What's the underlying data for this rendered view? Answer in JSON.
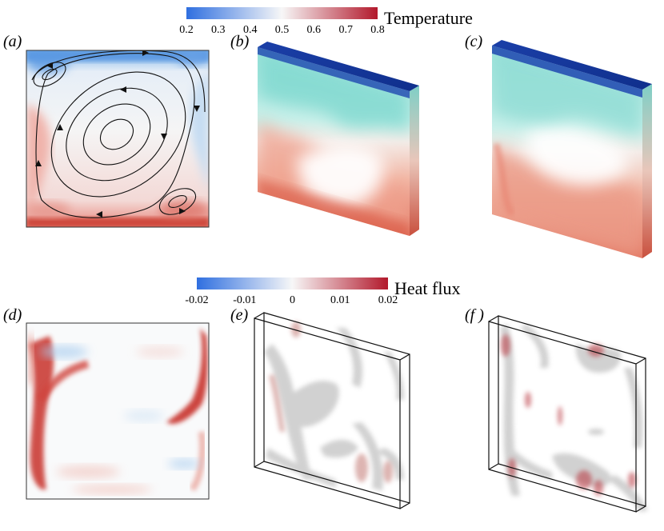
{
  "colorbars": [
    {
      "title": "Temperature",
      "ticks": [
        "0.2",
        "0.3",
        "0.4",
        "0.5",
        "0.6",
        "0.7",
        "0.8"
      ],
      "colors": [
        "#2f6fe0",
        "#f7f7f7",
        "#b2182b"
      ]
    },
    {
      "title": "Heat flux",
      "ticks": [
        "-0.02",
        "-0.01",
        "0",
        "0.01",
        "0.02"
      ],
      "colors": [
        "#2f6fe0",
        "#f7f7f7",
        "#b2182b"
      ]
    }
  ],
  "panels": [
    {
      "id": "a",
      "label": "(a)",
      "content": "temperature-slice-streamlines"
    },
    {
      "id": "b",
      "label": "(b)",
      "content": "temperature-volume"
    },
    {
      "id": "c",
      "label": "(c)",
      "content": "temperature-volume"
    },
    {
      "id": "d",
      "label": "(d)",
      "content": "heat-flux-slice"
    },
    {
      "id": "e",
      "label": "(e)",
      "content": "heat-flux-isosurfaces"
    },
    {
      "id": "f",
      "label": "(f )",
      "content": "heat-flux-isosurfaces"
    }
  ],
  "colors": {
    "hot": "#b2182b",
    "cold": "#2f6fe0",
    "cyan": "#8fe0d8",
    "deepblue": "#14349a"
  }
}
